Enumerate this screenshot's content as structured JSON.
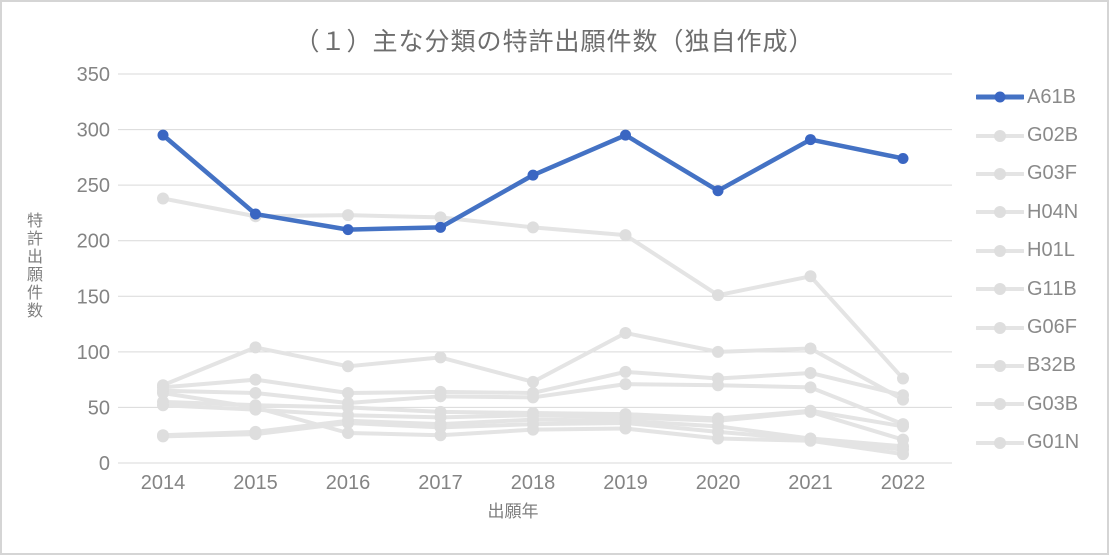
{
  "chart_data": {
    "type": "line",
    "title": "（１）主な分類の特許出願件数（独自作成）",
    "xlabel": "出願年",
    "ylabel": "特許出願件数",
    "x": [
      2014,
      2015,
      2016,
      2017,
      2018,
      2019,
      2020,
      2021,
      2022
    ],
    "ylim": [
      0,
      350
    ],
    "yticks": [
      0,
      50,
      100,
      150,
      200,
      250,
      300,
      350
    ],
    "grid": "horizontal",
    "legend_position": "right",
    "series": [
      {
        "name": "A61B",
        "color": "#4472c4",
        "marker_color": "#3a66c2",
        "emphasis": true,
        "values": [
          295,
          224,
          210,
          212,
          259,
          295,
          245,
          291,
          274
        ]
      },
      {
        "name": "G02B",
        "color": "#e4e4e4",
        "marker_color": "#dedede",
        "values": [
          238,
          222,
          223,
          221,
          212,
          205,
          151,
          168,
          76
        ]
      },
      {
        "name": "G03F",
        "color": "#e4e4e4",
        "marker_color": "#dedede",
        "values": [
          70,
          104,
          87,
          95,
          73,
          117,
          100,
          103,
          57
        ]
      },
      {
        "name": "H04N",
        "color": "#e4e4e4",
        "marker_color": "#dedede",
        "values": [
          68,
          75,
          63,
          64,
          63,
          82,
          76,
          81,
          61
        ]
      },
      {
        "name": "H01L",
        "color": "#e4e4e4",
        "marker_color": "#dedede",
        "values": [
          65,
          63,
          54,
          60,
          59,
          71,
          70,
          68,
          35
        ]
      },
      {
        "name": "G11B",
        "color": "#e4e4e4",
        "marker_color": "#dedede",
        "values": [
          55,
          52,
          50,
          46,
          45,
          44,
          40,
          47,
          33
        ]
      },
      {
        "name": "G06F",
        "color": "#e4e4e4",
        "marker_color": "#dedede",
        "values": [
          52,
          48,
          43,
          41,
          43,
          41,
          38,
          46,
          21
        ]
      },
      {
        "name": "B32B",
        "color": "#e4e4e4",
        "marker_color": "#dedede",
        "values": [
          25,
          28,
          38,
          35,
          39,
          38,
          33,
          22,
          15
        ]
      },
      {
        "name": "G03B",
        "color": "#e4e4e4",
        "marker_color": "#dedede",
        "values": [
          24,
          26,
          36,
          32,
          35,
          36,
          28,
          21,
          12
        ]
      },
      {
        "name": "G01N",
        "color": "#e4e4e4",
        "marker_color": "#dedede",
        "values": [
          63,
          50,
          27,
          25,
          30,
          31,
          22,
          20,
          8
        ]
      }
    ],
    "colors": {
      "grid": "#d9d9d9",
      "axis_text": "#848484",
      "title_text": "#6e6e6e",
      "frame_border": "#d5d5d5"
    }
  }
}
